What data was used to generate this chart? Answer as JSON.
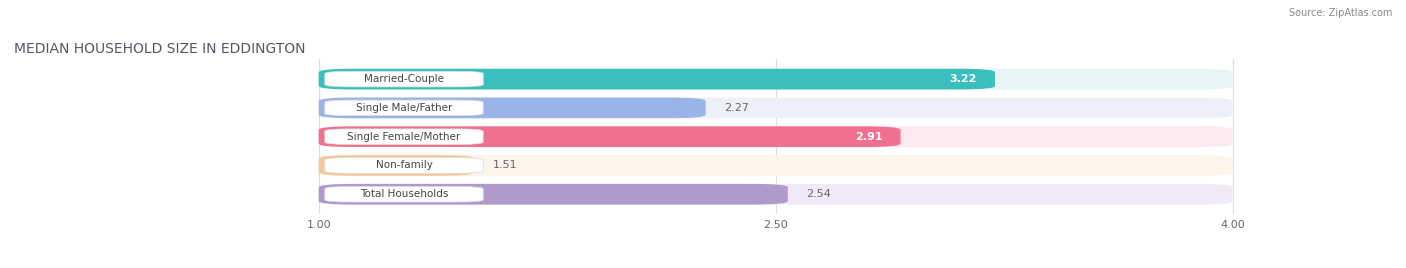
{
  "title": "MEDIAN HOUSEHOLD SIZE IN EDDINGTON",
  "source": "Source: ZipAtlas.com",
  "categories": [
    "Married-Couple",
    "Single Male/Father",
    "Single Female/Mother",
    "Non-family",
    "Total Households"
  ],
  "values": [
    3.22,
    2.27,
    2.91,
    1.51,
    2.54
  ],
  "bar_colors": [
    "#3bbfbe",
    "#9ab4e8",
    "#f07090",
    "#f5c89a",
    "#b09acc"
  ],
  "bg_colors": [
    "#e8f5f5",
    "#edf0fa",
    "#fce8ef",
    "#fdf4ea",
    "#f0eaf8"
  ],
  "xlim": [
    0.0,
    4.5
  ],
  "x_min": 1.0,
  "x_max": 4.0,
  "xticks": [
    1.0,
    2.5,
    4.0
  ],
  "xtick_labels": [
    "1.00",
    "2.50",
    "4.00"
  ],
  "value_fontsize": 8,
  "label_fontsize": 7.5,
  "title_fontsize": 10,
  "background_color": "#ffffff"
}
